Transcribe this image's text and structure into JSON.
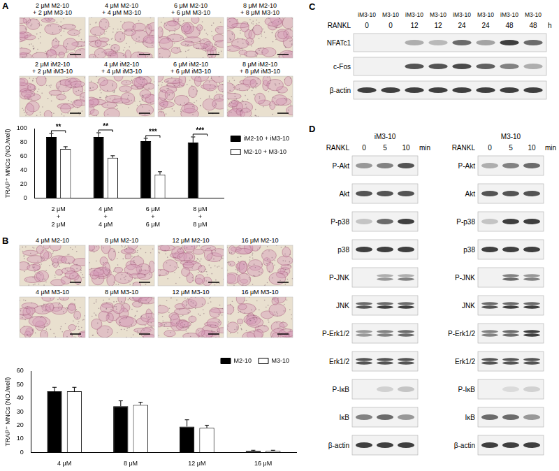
{
  "chart_data": [
    {
      "type": "bar",
      "categories": [
        "2 μM\n+\n2 μM",
        "4 μM\n+\n4 μM",
        "6 μM\n+\n6 μM",
        "8 μM\n+\n8 μM"
      ],
      "series": [
        {
          "name": "iM2-10 + iM3-10",
          "color": "#000000",
          "values": [
            88,
            88,
            82,
            80
          ],
          "errors": [
            5,
            6,
            4,
            8
          ]
        },
        {
          "name": "M2-10 + M3-10",
          "color": "#ffffff",
          "values": [
            71,
            58,
            34,
            0
          ],
          "errors": [
            3,
            3,
            4,
            null
          ]
        }
      ],
      "y_label": "TRAP⁺ MNCs (NO./well)",
      "ylim": [
        0,
        100
      ],
      "yticks": [
        0,
        20,
        40,
        60,
        80,
        100
      ],
      "grid": false,
      "legend": "right",
      "significance": [
        "**",
        "**",
        "***",
        "***"
      ]
    },
    {
      "type": "bar",
      "categories": [
        "4 μM",
        "8 μM",
        "12 μM",
        "16 μM"
      ],
      "series": [
        {
          "name": "M2-10",
          "color": "#000000",
          "values": [
            45,
            34,
            19,
            1
          ],
          "errors": [
            3,
            4,
            5,
            0.5
          ]
        },
        {
          "name": "M3-10",
          "color": "#ffffff",
          "values": [
            45,
            35,
            18,
            1
          ],
          "errors": [
            3,
            2,
            2,
            0.5
          ]
        }
      ],
      "y_label": "TRAP⁺ MNCs (NO./well)",
      "ylim": [
        0,
        60
      ],
      "yticks": [
        0,
        10,
        20,
        30,
        40,
        50,
        60
      ],
      "grid": false,
      "legend": "upper right"
    }
  ],
  "micrographs": {
    "A": {
      "label": "A",
      "images": [
        [
          "2 μM M2-10",
          "+ 2 μM M3-10"
        ],
        [
          "4 μM M2-10",
          "+ 4 μM M3-10"
        ],
        [
          "6 μM M2-10",
          "+ 6 μM M3-10"
        ],
        [
          "8 μM M2-10",
          "+ 8 μM M3-10"
        ],
        [
          "2 μM iM2-10",
          "+ 2 μM iM3-10"
        ],
        [
          "4 μM iM2-10",
          "+ 4 μM iM3-10"
        ],
        [
          "6 μM iM2-10",
          "+ 6 μM iM3-10"
        ],
        [
          "8 μM iM2-10",
          "+ 8 μM iM3-10"
        ]
      ]
    },
    "B": {
      "label": "B",
      "images": [
        [
          "4 μM M2-10"
        ],
        [
          "8 μM M2-10"
        ],
        [
          "12 μM M2-10"
        ],
        [
          "16 μM M2-10"
        ],
        [
          "4 μM M3-10"
        ],
        [
          "8 μM M3-10"
        ],
        [
          "12 μM M3-10"
        ],
        [
          "16 μM M3-10"
        ]
      ]
    }
  },
  "blots": {
    "C": {
      "label": "C",
      "lanes": [
        "iM3-10",
        "M3-10",
        "iM3-10",
        "M3-10",
        "iM3-10",
        "M3-10",
        "iM3-10",
        "M3-10"
      ],
      "treatment": {
        "name": "RANKL",
        "values": [
          0,
          0,
          12,
          12,
          24,
          24,
          48,
          48
        ],
        "unit": "h"
      },
      "rows": [
        {
          "name": "NFATc1",
          "intensity": [
            0,
            0,
            0.3,
            0.25,
            0.6,
            0.35,
            0.8,
            0.6
          ]
        },
        {
          "name": "c-Fos",
          "intensity": [
            0,
            0,
            0.7,
            0.7,
            0.75,
            0.65,
            0.5,
            0.3
          ]
        },
        {
          "name": "β-actin",
          "intensity": [
            0.8,
            0.8,
            0.8,
            0.8,
            0.8,
            0.8,
            0.8,
            0.8
          ]
        }
      ]
    },
    "D": {
      "label": "D",
      "blots": [
        {
          "title": "iM3-10",
          "treatment": {
            "name": "RANKL",
            "values": [
              0,
              5,
              10
            ],
            "unit": "min"
          },
          "rows": [
            {
              "name": "P-Akt",
              "intensity": [
                0.4,
                0.5,
                0.7
              ]
            },
            {
              "name": "Akt",
              "intensity": [
                0.7,
                0.7,
                0.7
              ]
            },
            {
              "name": "P-p38",
              "intensity": [
                0.2,
                0.6,
                0.8
              ]
            },
            {
              "name": "p38",
              "intensity": [
                0.8,
                0.8,
                0.8
              ]
            },
            {
              "name": "P-JNK",
              "intensity": [
                [
                  0,
                  0
                ],
                [
                  0.3,
                  0.4
                ],
                [
                  0.3,
                  0.5
                ]
              ]
            },
            {
              "name": "JNK",
              "intensity": [
                [
                  0.6,
                  0.7
                ],
                [
                  0.6,
                  0.8
                ],
                [
                  0.6,
                  0.8
                ]
              ]
            },
            {
              "name": "P-Erk1/2",
              "intensity": [
                [
                  0.4,
                  0.4
                ],
                [
                  0.5,
                  0.5
                ],
                [
                  0.6,
                  0.6
                ]
              ]
            },
            {
              "name": "Erk1/2",
              "intensity": [
                [
                  0.7,
                  0.7
                ],
                [
                  0.7,
                  0.7
                ],
                [
                  0.7,
                  0.7
                ]
              ]
            },
            {
              "name": "P-IκB",
              "intensity": [
                0,
                0.15,
                0.2
              ]
            },
            {
              "name": "IκB",
              "intensity": [
                0.5,
                0.6,
                0.4
              ]
            },
            {
              "name": "β-actin",
              "intensity": [
                0.8,
                0.8,
                0.8
              ]
            }
          ]
        },
        {
          "title": "M3-10",
          "treatment": {
            "name": "RANKL",
            "values": [
              0,
              5,
              10
            ],
            "unit": "min"
          },
          "rows": [
            {
              "name": "P-Akt",
              "intensity": [
                0.3,
                0.5,
                0.6
              ]
            },
            {
              "name": "Akt",
              "intensity": [
                0.7,
                0.7,
                0.7
              ]
            },
            {
              "name": "P-p38",
              "intensity": [
                0.2,
                0.8,
                0.8
              ]
            },
            {
              "name": "p38",
              "intensity": [
                0.8,
                0.8,
                0.8
              ]
            },
            {
              "name": "P-JNK",
              "intensity": [
                [
                  0,
                  0
                ],
                [
                  0.5,
                  0.6
                ],
                [
                  0.4,
                  0.5
                ]
              ]
            },
            {
              "name": "JNK",
              "intensity": [
                [
                  0.6,
                  0.7
                ],
                [
                  0.6,
                  0.8
                ],
                [
                  0.6,
                  0.8
                ]
              ]
            },
            {
              "name": "P-Erk1/2",
              "intensity": [
                [
                  0.5,
                  0.5
                ],
                [
                  0.6,
                  0.6
                ],
                [
                  0.8,
                  0.8
                ]
              ]
            },
            {
              "name": "Erk1/2",
              "intensity": [
                [
                  0.7,
                  0.7
                ],
                [
                  0.7,
                  0.7
                ],
                [
                  0.7,
                  0.7
                ]
              ]
            },
            {
              "name": "P-IκB",
              "intensity": [
                0,
                0.1,
                0.15
              ]
            },
            {
              "name": "IκB",
              "intensity": [
                0.6,
                0.6,
                0.4
              ]
            },
            {
              "name": "β-actin",
              "intensity": [
                0.8,
                0.8,
                0.8
              ]
            }
          ]
        }
      ]
    }
  }
}
